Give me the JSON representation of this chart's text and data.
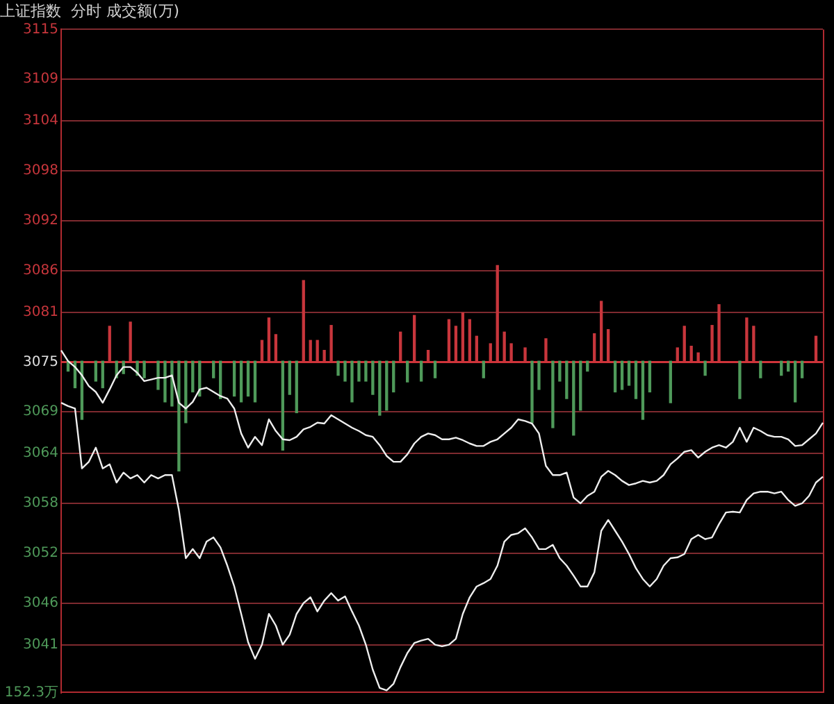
{
  "chart_data": {
    "type": "line",
    "title": "上证指数  分时 成交额(万)",
    "grid": "y",
    "marker": "none",
    "categories": [
      null,
      null,
      null,
      null,
      null,
      null,
      null,
      null,
      null,
      null,
      null,
      null,
      null,
      null,
      null,
      null,
      null,
      null,
      null,
      null,
      null,
      null,
      null,
      null,
      null,
      null,
      null,
      null,
      null,
      null,
      null,
      null,
      null,
      null,
      null,
      null,
      null,
      null,
      null,
      null,
      null,
      null,
      null,
      null,
      null,
      null,
      null,
      null,
      null,
      null,
      null,
      null,
      null,
      null,
      null,
      null,
      null,
      null,
      null,
      null,
      null,
      null,
      null,
      null,
      null,
      null,
      null,
      null,
      null,
      null,
      null,
      null,
      null,
      null,
      null,
      null,
      null,
      null,
      null,
      null,
      null,
      null,
      null,
      null,
      null,
      null,
      null,
      null,
      null,
      null,
      null,
      null,
      null,
      null,
      null,
      null,
      null,
      null,
      null,
      null,
      null,
      null,
      null,
      null,
      null,
      null,
      null,
      null,
      null,
      null,
      null
    ],
    "ylim": [
      3035.2,
      3115.0
    ],
    "yticks": [
      3115,
      3109,
      3104,
      3098,
      3092,
      3086,
      3081,
      3075,
      3069,
      3064,
      3058,
      3052,
      3046,
      3041
    ],
    "annotations": [
      "152.3万"
    ],
    "ref_lines": [
      {
        "axis": "y",
        "value": 3075,
        "color": "#d0343a"
      }
    ],
    "series": [
      {
        "type": "bar",
        "base": [
          null,
          3075.1,
          3075.1,
          3075.1,
          null,
          3075.1,
          3075.1,
          3075.1,
          3075.1,
          3075.1,
          3075.1,
          3075.1,
          3075.1,
          null,
          3075.1,
          3075.1,
          3075.1,
          3075.1,
          3075.1,
          3075.1,
          3075.1,
          null,
          3075.1,
          3075.1,
          null,
          3075.1,
          3075.1,
          3075.1,
          3075.1,
          3075.1,
          3075.1,
          3075.1,
          3075.1,
          3075.1,
          3075.1,
          3075.1,
          3075.1,
          3075.1,
          3075.1,
          3075.1,
          3075.1,
          3075.1,
          3075.1,
          3075.1,
          3075.1,
          3075.1,
          3075.1,
          3075.1,
          3075.1,
          3075.1,
          3075.1,
          3075.1,
          3075.1,
          3075.1,
          3075.1,
          null,
          3075.1,
          3075.1,
          3075.1,
          3075.1,
          3075.1,
          3075.1,
          3075.1,
          3075.1,
          3075.1,
          3075.1,
          null,
          3075.1,
          3075.1,
          3075.1,
          3075.1,
          3075.1,
          3075.1,
          3075.1,
          3075.1,
          3075.1,
          3075.1,
          3075.1,
          3075.1,
          3075.1,
          3075.1,
          3075.1,
          3075.1,
          3075.1,
          3075.1,
          3075.1,
          null,
          null,
          3075.1,
          3075.1,
          3075.1,
          3075.1,
          3075.1,
          3075.1,
          3075.1,
          3075.1,
          null,
          null,
          3075.1,
          3075.1,
          3075.1,
          3075.1,
          null,
          null,
          3075.1,
          3075.1,
          3075.1,
          3075.1,
          null,
          3075.1,
          null
        ],
        "values": [
          null,
          -1.2,
          -3.2,
          -7.0,
          null,
          -2.4,
          -3.2,
          4.2,
          -2.0,
          -1.5,
          4.7,
          -1.7,
          -2.0,
          null,
          -3.4,
          -4.9,
          -5.4,
          -13.2,
          -7.4,
          -3.7,
          -4.2,
          null,
          -2.0,
          -4.5,
          null,
          -4.2,
          -4.9,
          -4.2,
          -4.9,
          2.5,
          5.2,
          3.2,
          -10.7,
          -4.0,
          -6.2,
          9.7,
          2.5,
          2.5,
          1.3,
          4.3,
          -1.7,
          -2.4,
          -4.9,
          -2.4,
          -2.4,
          -4.0,
          -6.5,
          -5.9,
          -3.7,
          3.5,
          -2.5,
          5.5,
          -2.4,
          1.3,
          -2.0,
          null,
          5.0,
          4.2,
          5.8,
          5.0,
          3.0,
          -2.0,
          2.1,
          11.5,
          3.5,
          2.1,
          null,
          1.6,
          -7.4,
          -3.4,
          2.7,
          -8.0,
          -2.4,
          -4.5,
          -8.9,
          -5.9,
          -1.2,
          3.3,
          7.2,
          3.8,
          -3.7,
          -3.4,
          -2.9,
          -4.5,
          -7.0,
          -3.7,
          null,
          null,
          -5.0,
          1.6,
          4.2,
          1.8,
          1.0,
          -1.7,
          4.3,
          6.8,
          null,
          null,
          -4.5,
          5.2,
          4.2,
          -2.0,
          null,
          null,
          -1.7,
          -1.2,
          -4.9,
          -2.0,
          null,
          3.0,
          null
        ],
        "colors": [
          null,
          "#4f9a5a",
          "#4f9a5a",
          "#4f9a5a",
          null,
          "#4f9a5a",
          "#4f9a5a",
          "#c8363c",
          "#4f9a5a",
          "#4f9a5a",
          "#c8363c",
          "#4f9a5a",
          "#4f9a5a",
          null,
          "#4f9a5a",
          "#4f9a5a",
          "#4f9a5a",
          "#4f9a5a",
          "#4f9a5a",
          "#4f9a5a",
          "#4f9a5a",
          null,
          "#4f9a5a",
          "#4f9a5a",
          null,
          "#4f9a5a",
          "#4f9a5a",
          "#4f9a5a",
          "#4f9a5a",
          "#c8363c",
          "#c8363c",
          "#c8363c",
          "#4f9a5a",
          "#4f9a5a",
          "#4f9a5a",
          "#c8363c",
          "#c8363c",
          "#c8363c",
          "#c8363c",
          "#c8363c",
          "#4f9a5a",
          "#4f9a5a",
          "#4f9a5a",
          "#4f9a5a",
          "#4f9a5a",
          "#4f9a5a",
          "#4f9a5a",
          "#4f9a5a",
          "#4f9a5a",
          "#c8363c",
          "#4f9a5a",
          "#c8363c",
          "#4f9a5a",
          "#c8363c",
          "#4f9a5a",
          null,
          "#c8363c",
          "#c8363c",
          "#c8363c",
          "#c8363c",
          "#c8363c",
          "#4f9a5a",
          "#c8363c",
          "#c8363c",
          "#c8363c",
          "#c8363c",
          null,
          "#c8363c",
          "#4f9a5a",
          "#4f9a5a",
          "#c8363c",
          "#4f9a5a",
          "#4f9a5a",
          "#4f9a5a",
          "#4f9a5a",
          "#4f9a5a",
          "#4f9a5a",
          "#c8363c",
          "#c8363c",
          "#c8363c",
          "#4f9a5a",
          "#4f9a5a",
          "#4f9a5a",
          "#4f9a5a",
          "#4f9a5a",
          "#4f9a5a",
          null,
          null,
          "#4f9a5a",
          "#c8363c",
          "#c8363c",
          "#c8363c",
          "#c8363c",
          "#4f9a5a",
          "#c8363c",
          "#c8363c",
          null,
          null,
          "#4f9a5a",
          "#c8363c",
          "#c8363c",
          "#4f9a5a",
          null,
          null,
          "#4f9a5a",
          "#4f9a5a",
          "#4f9a5a",
          "#4f9a5a",
          null,
          "#c8363c",
          null
        ]
      },
      {
        "type": "line",
        "color": "#eeeeee",
        "values": [
          3076.4,
          3075.1,
          3074.4,
          3073.4,
          3072.1,
          3071.4,
          3070.1,
          3071.7,
          3073.4,
          3074.4,
          3074.4,
          3073.7,
          3072.7,
          3072.9,
          3073.1,
          3073.1,
          3073.4,
          3070.1,
          3069.4,
          3070.2,
          3071.7,
          3071.9,
          3071.4,
          3070.9,
          3070.6,
          3069.4,
          3066.4,
          3064.7,
          3066.0,
          3065.0,
          3068.1,
          3066.7,
          3065.7,
          3065.6,
          3066.0,
          3066.9,
          3067.2,
          3067.7,
          3067.6,
          3068.6,
          3068.1,
          3067.6,
          3067.1,
          3066.7,
          3066.2,
          3066.0,
          3065.0,
          3063.7,
          3063.0,
          3063.0,
          3063.9,
          3065.2,
          3066.0,
          3066.4,
          3066.2,
          3065.7,
          3065.7,
          3065.9,
          3065.6,
          3065.2,
          3064.9,
          3064.9,
          3065.4,
          3065.7,
          3066.4,
          3067.1,
          3068.1,
          3067.9,
          3067.6,
          3066.4,
          3062.5,
          3061.4,
          3061.4,
          3061.7,
          3058.7,
          3058.0,
          3058.9,
          3059.4,
          3061.2,
          3061.9,
          3061.4,
          3060.7,
          3060.2,
          3060.4,
          3060.7,
          3060.5,
          3060.7,
          3061.4,
          3062.7,
          3063.4,
          3064.2,
          3064.4,
          3063.5,
          3064.2,
          3064.7,
          3065.0,
          3064.7,
          3065.4,
          3067.1,
          3065.4,
          3067.1,
          3066.7,
          3066.2,
          3066.0,
          3066.0,
          3065.7,
          3064.9,
          3065.0,
          3065.7,
          3066.4,
          3067.7
        ]
      },
      {
        "type": "line",
        "color": "#eeeeee",
        "values": [
          3070.1,
          3069.7,
          3069.4,
          3062.2,
          3063.0,
          3064.7,
          3062.2,
          3062.7,
          3060.5,
          3061.7,
          3061.0,
          3061.4,
          3060.5,
          3061.4,
          3061.0,
          3061.4,
          3061.4,
          3057.2,
          3051.4,
          3052.5,
          3051.4,
          3053.4,
          3053.9,
          3052.7,
          3050.5,
          3048.0,
          3044.7,
          3041.3,
          3039.3,
          3041.0,
          3044.7,
          3043.3,
          3041.0,
          3042.2,
          3044.7,
          3046.0,
          3046.7,
          3045.0,
          3046.3,
          3047.2,
          3046.3,
          3046.8,
          3045.0,
          3043.3,
          3041.0,
          3038.0,
          3035.8,
          3035.5,
          3036.3,
          3038.3,
          3040.0,
          3041.2,
          3041.5,
          3041.7,
          3041.0,
          3040.8,
          3041.0,
          3041.7,
          3044.7,
          3046.7,
          3048.0,
          3048.4,
          3048.9,
          3050.5,
          3053.4,
          3054.2,
          3054.4,
          3055.0,
          3053.9,
          3052.5,
          3052.5,
          3053.0,
          3051.4,
          3050.5,
          3049.3,
          3048.0,
          3048.0,
          3049.7,
          3054.7,
          3056.0,
          3054.7,
          3053.4,
          3051.9,
          3050.2,
          3048.9,
          3048.0,
          3048.9,
          3050.5,
          3051.4,
          3051.5,
          3051.9,
          3053.7,
          3054.2,
          3053.7,
          3053.9,
          3055.5,
          3056.9,
          3057.0,
          3056.9,
          3058.4,
          3059.2,
          3059.4,
          3059.4,
          3059.2,
          3059.4,
          3058.4,
          3057.7,
          3058.0,
          3058.9,
          3060.5,
          3061.2
        ]
      }
    ]
  }
}
